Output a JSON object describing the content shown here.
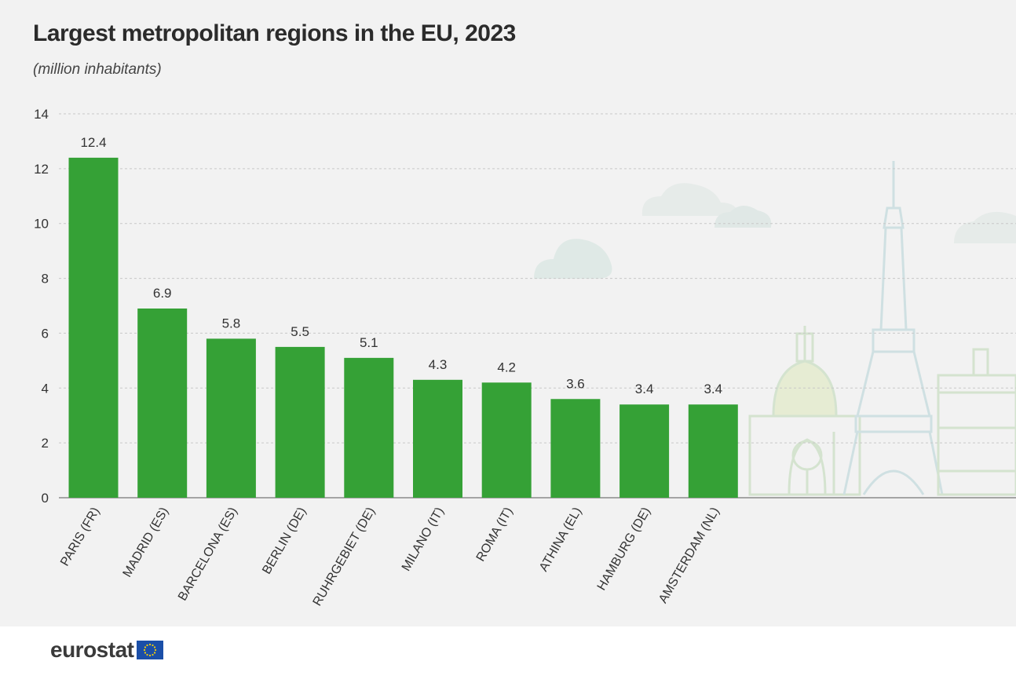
{
  "header": {
    "title": "Largest metropolitan regions in the EU, 2023",
    "subtitle": "(million inhabitants)"
  },
  "footer": {
    "logo_text": "eurostat"
  },
  "colors": {
    "bar": "#35a136",
    "background": "#f2f2f2",
    "decoration": "#cfe3d9"
  },
  "chart_data": {
    "type": "bar",
    "title": "Largest metropolitan regions in the EU, 2023",
    "subtitle": "(million inhabitants)",
    "xlabel": "",
    "ylabel": "",
    "ylim": [
      0,
      14
    ],
    "yticks": [
      0,
      2,
      4,
      6,
      8,
      10,
      12,
      14
    ],
    "grid": true,
    "categories": [
      "PARIS (FR)",
      "MADRID (ES)",
      "BARCELONA (ES)",
      "BERLIN (DE)",
      "RUHRGEBIET (DE)",
      "MILANO (IT)",
      "ROMA (IT)",
      "ATHINA (EL)",
      "HAMBURG (DE)",
      "AMSTERDAM (NL)"
    ],
    "values": [
      12.4,
      6.9,
      5.8,
      5.5,
      5.1,
      4.3,
      4.2,
      3.6,
      3.4,
      3.4
    ]
  }
}
